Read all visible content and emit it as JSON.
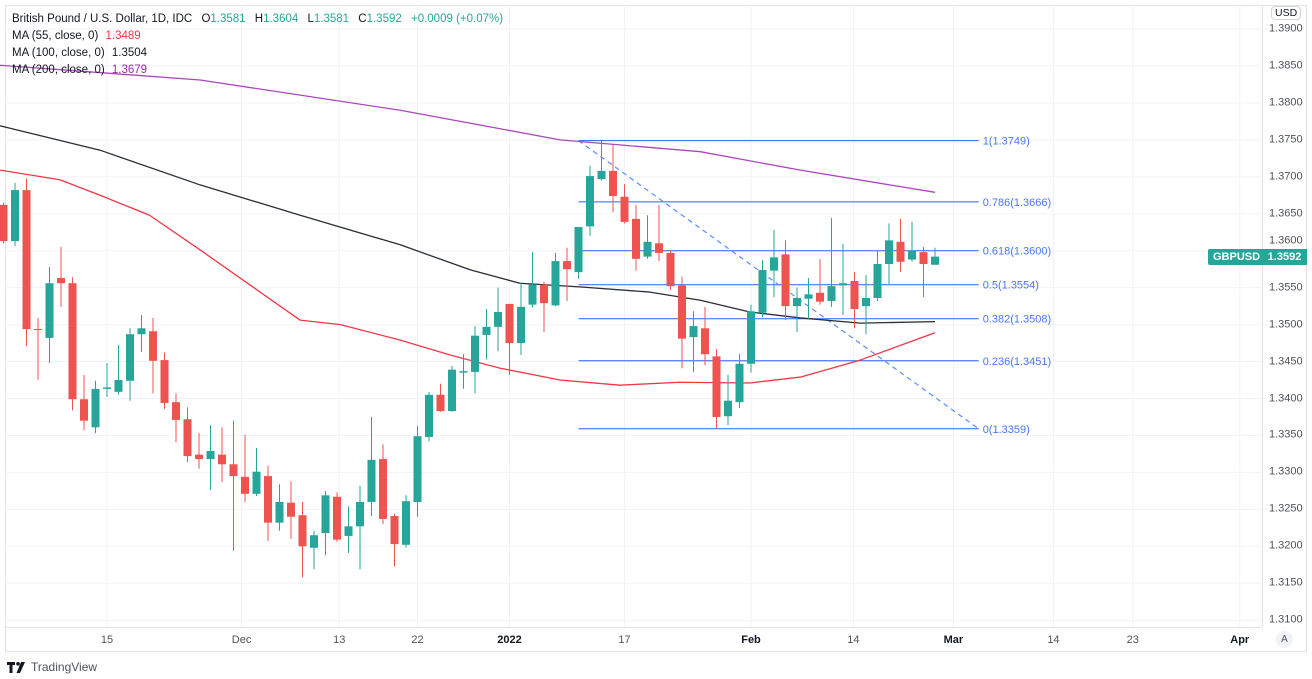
{
  "legend": {
    "title": "British Pound / U.S. Dollar, 1D, IDC",
    "o_label": "O",
    "o": "1.3581",
    "h_label": "H",
    "h": "1.3604",
    "l_label": "L",
    "l": "1.3581",
    "c_label": "C",
    "c": "1.3592",
    "change": "+0.0009 (+0.07%)",
    "ma55_label": "MA (55, close, 0)",
    "ma55_value": "1.3489",
    "ma100_label": "MA (100, close, 0)",
    "ma100_value": "1.3504",
    "ma200_label": "MA (200, close, 0)",
    "ma200_value": "1.3679"
  },
  "currency_button": "USD",
  "auto_scale_button": "A",
  "symbol_tag": "GBPUSD",
  "last_price_tag": "1.3592",
  "footer": {
    "brand": "TradingView"
  },
  "colors": {
    "up": "#26a69a",
    "down": "#ef5350",
    "ma55": "#f23645",
    "ma100": "#2a2e39",
    "ma200": "#ab47bc",
    "fib": "#2962ff",
    "grid": "#f0f3fa"
  },
  "chart_data": {
    "type": "candlestick",
    "title": "British Pound / U.S. Dollar, 1D, IDC",
    "ylim": [
      1.31,
      1.39
    ],
    "xlim": [
      -0.5,
      114
    ],
    "y_ticks": [
      "1.3100",
      "1.3150",
      "1.3200",
      "1.3250",
      "1.3300",
      "1.3350",
      "1.3400",
      "1.3450",
      "1.3500",
      "1.3550",
      "1.3600",
      "1.3650",
      "1.3700",
      "1.3750",
      "1.3800",
      "1.3850",
      "1.3900"
    ],
    "x_ticks": [
      {
        "label": "15",
        "bar": 9
      },
      {
        "label": "Dec",
        "bar": 20.7
      },
      {
        "label": "13",
        "bar": 29.2
      },
      {
        "label": "22",
        "bar": 36
      },
      {
        "label": "2022",
        "bar": 44,
        "bold": true
      },
      {
        "label": "17",
        "bar": 54
      },
      {
        "label": "Feb",
        "bar": 65,
        "bold": true
      },
      {
        "label": "14",
        "bar": 73.9
      },
      {
        "label": "Mar",
        "bar": 82.6,
        "bold": true
      },
      {
        "label": "14",
        "bar": 91.3
      },
      {
        "label": "23",
        "bar": 98.2
      },
      {
        "label": "Apr",
        "bar": 107.5,
        "bold": true
      }
    ],
    "candles_ohlc": [
      [
        1.3662,
        1.3665,
        1.361,
        1.3613
      ],
      [
        1.3613,
        1.3692,
        1.3606,
        1.3682
      ],
      [
        1.3682,
        1.3698,
        1.3471,
        1.3494
      ],
      [
        1.3494,
        1.3509,
        1.3425,
        1.3493
      ],
      [
        1.3482,
        1.3578,
        1.3448,
        1.3556
      ],
      [
        1.3563,
        1.3605,
        1.3524,
        1.3556
      ],
      [
        1.3556,
        1.3564,
        1.3384,
        1.3399
      ],
      [
        1.3399,
        1.3432,
        1.3357,
        1.337
      ],
      [
        1.3361,
        1.3424,
        1.3353,
        1.3413
      ],
      [
        1.3413,
        1.3448,
        1.3402,
        1.3415
      ],
      [
        1.3409,
        1.3472,
        1.3405,
        1.3425
      ],
      [
        1.3424,
        1.3495,
        1.3397,
        1.3487
      ],
      [
        1.3487,
        1.3513,
        1.3463,
        1.3495
      ],
      [
        1.3491,
        1.3509,
        1.3407,
        1.3451
      ],
      [
        1.3452,
        1.3462,
        1.3386,
        1.3394
      ],
      [
        1.3395,
        1.3407,
        1.3341,
        1.3371
      ],
      [
        1.3372,
        1.3388,
        1.3314,
        1.3322
      ],
      [
        1.3324,
        1.3353,
        1.3305,
        1.3318
      ],
      [
        1.3318,
        1.3364,
        1.3276,
        1.3329
      ],
      [
        1.3324,
        1.3361,
        1.3287,
        1.3311
      ],
      [
        1.3311,
        1.337,
        1.3194,
        1.3295
      ],
      [
        1.3294,
        1.3351,
        1.326,
        1.3271
      ],
      [
        1.3271,
        1.3333,
        1.3268,
        1.3301
      ],
      [
        1.3295,
        1.3309,
        1.3207,
        1.3232
      ],
      [
        1.3232,
        1.3284,
        1.3221,
        1.326
      ],
      [
        1.3259,
        1.3288,
        1.321,
        1.324
      ],
      [
        1.3242,
        1.326,
        1.3158,
        1.32
      ],
      [
        1.3198,
        1.3221,
        1.3169,
        1.3215
      ],
      [
        1.3218,
        1.3275,
        1.3188,
        1.3269
      ],
      [
        1.3267,
        1.3273,
        1.3206,
        1.3209
      ],
      [
        1.3214,
        1.3254,
        1.3191,
        1.3227
      ],
      [
        1.3227,
        1.3282,
        1.3169,
        1.326
      ],
      [
        1.326,
        1.3375,
        1.3241,
        1.3317
      ],
      [
        1.3318,
        1.3338,
        1.323,
        1.3237
      ],
      [
        1.3241,
        1.3244,
        1.3173,
        1.3203
      ],
      [
        1.3202,
        1.3269,
        1.3198,
        1.3261
      ],
      [
        1.326,
        1.3363,
        1.324,
        1.3349
      ],
      [
        1.3348,
        1.3409,
        1.3342,
        1.3405
      ],
      [
        1.3405,
        1.342,
        1.3382,
        1.3383
      ],
      [
        1.3383,
        1.3444,
        1.3382,
        1.3439
      ],
      [
        1.3435,
        1.346,
        1.3413,
        1.3437
      ],
      [
        1.3436,
        1.3498,
        1.3407,
        1.3485
      ],
      [
        1.3486,
        1.3521,
        1.3453,
        1.3497
      ],
      [
        1.3497,
        1.355,
        1.3464,
        1.3517
      ],
      [
        1.3528,
        1.3528,
        1.3432,
        1.3475
      ],
      [
        1.3475,
        1.3556,
        1.3459,
        1.3524
      ],
      [
        1.3527,
        1.3598,
        1.3523,
        1.3554
      ],
      [
        1.3554,
        1.3558,
        1.349,
        1.3529
      ],
      [
        1.3526,
        1.3597,
        1.3525,
        1.3586
      ],
      [
        1.3586,
        1.3604,
        1.3532,
        1.3575
      ],
      [
        1.3571,
        1.3632,
        1.3562,
        1.3632
      ],
      [
        1.3633,
        1.3715,
        1.362,
        1.3701
      ],
      [
        1.3697,
        1.3749,
        1.3695,
        1.3708
      ],
      [
        1.3708,
        1.3743,
        1.3652,
        1.3674
      ],
      [
        1.3673,
        1.369,
        1.3637,
        1.3639
      ],
      [
        1.3643,
        1.3662,
        1.3573,
        1.3589
      ],
      [
        1.3592,
        1.3648,
        1.3589,
        1.3612
      ],
      [
        1.361,
        1.3662,
        1.3586,
        1.3597
      ],
      [
        1.3597,
        1.3601,
        1.3547,
        1.3552
      ],
      [
        1.3553,
        1.3565,
        1.3441,
        1.3481
      ],
      [
        1.3483,
        1.3518,
        1.3436,
        1.3498
      ],
      [
        1.3495,
        1.3524,
        1.3445,
        1.346
      ],
      [
        1.3457,
        1.3467,
        1.3359,
        1.3375
      ],
      [
        1.3376,
        1.3432,
        1.3364,
        1.3397
      ],
      [
        1.3395,
        1.346,
        1.3387,
        1.3447
      ],
      [
        1.3447,
        1.3527,
        1.3435,
        1.3518
      ],
      [
        1.3516,
        1.3587,
        1.351,
        1.3574
      ],
      [
        1.3573,
        1.3628,
        1.3537,
        1.3591
      ],
      [
        1.3595,
        1.3614,
        1.3506,
        1.3525
      ],
      [
        1.3525,
        1.355,
        1.349,
        1.3536
      ],
      [
        1.3535,
        1.3563,
        1.3508,
        1.3541
      ],
      [
        1.3543,
        1.3589,
        1.3527,
        1.3531
      ],
      [
        1.3532,
        1.3644,
        1.3524,
        1.3552
      ],
      [
        1.3553,
        1.3609,
        1.3513,
        1.3556
      ],
      [
        1.3559,
        1.3571,
        1.3495,
        1.3521
      ],
      [
        1.3525,
        1.3567,
        1.3487,
        1.3536
      ],
      [
        1.3536,
        1.36,
        1.3532,
        1.3582
      ],
      [
        1.3582,
        1.3637,
        1.3555,
        1.3614
      ],
      [
        1.3612,
        1.3643,
        1.3571,
        1.3585
      ],
      [
        1.3588,
        1.3639,
        1.3585,
        1.36
      ],
      [
        1.3598,
        1.3605,
        1.3537,
        1.3582
      ],
      [
        1.3581,
        1.3604,
        1.3581,
        1.3592
      ]
    ],
    "series": [
      {
        "name": "MA (55, close, 0)",
        "key": "ma55",
        "points": [
          [
            -0.3,
            1.3709
          ],
          [
            4.9,
            1.3696
          ],
          [
            8.4,
            1.3675
          ],
          [
            12.7,
            1.3648
          ],
          [
            17.1,
            1.3601
          ],
          [
            21.4,
            1.3554
          ],
          [
            25.8,
            1.3506
          ],
          [
            29.3,
            1.35
          ],
          [
            34.5,
            1.3479
          ],
          [
            38.8,
            1.3459
          ],
          [
            43.2,
            1.3441
          ],
          [
            48.4,
            1.3425
          ],
          [
            53.6,
            1.3418
          ],
          [
            58.8,
            1.3422
          ],
          [
            64.9,
            1.3421
          ],
          [
            69.3,
            1.3429
          ],
          [
            74.5,
            1.3452
          ],
          [
            81,
            1.3489
          ]
        ]
      },
      {
        "name": "MA (100, close, 0)",
        "key": "ma100",
        "points": [
          [
            -0.3,
            1.3769
          ],
          [
            8.4,
            1.3736
          ],
          [
            17.1,
            1.3689
          ],
          [
            25.8,
            1.3648
          ],
          [
            34.5,
            1.3608
          ],
          [
            40.6,
            1.3574
          ],
          [
            44.9,
            1.3556
          ],
          [
            50.1,
            1.3551
          ],
          [
            56.2,
            1.3544
          ],
          [
            60.6,
            1.3533
          ],
          [
            64.9,
            1.3517
          ],
          [
            69.3,
            1.3509
          ],
          [
            74.5,
            1.3502
          ],
          [
            81,
            1.3504
          ]
        ]
      },
      {
        "name": "MA (200, close, 0)",
        "key": "ma200",
        "points": [
          [
            -0.3,
            1.3851
          ],
          [
            17.1,
            1.3831
          ],
          [
            34.5,
            1.379
          ],
          [
            48.4,
            1.375
          ],
          [
            60.6,
            1.3734
          ],
          [
            69.3,
            1.3709
          ],
          [
            81,
            1.3679
          ]
        ]
      }
    ],
    "fibonacci": {
      "start_bar": 50,
      "end_bar": 84.8,
      "levels": [
        {
          "label": "1(1.3749)",
          "price": 1.3749
        },
        {
          "label": "0.786(1.3666)",
          "price": 1.3666
        },
        {
          "label": "0.618(1.3600)",
          "price": 1.36
        },
        {
          "label": "0.5(1.3554)",
          "price": 1.3554
        },
        {
          "label": "0.382(1.3508)",
          "price": 1.3508
        },
        {
          "label": "0.236(1.3451)",
          "price": 1.3451
        },
        {
          "label": "0(1.3359)",
          "price": 1.3359
        }
      ],
      "trendline": [
        [
          50,
          1.3749
        ],
        [
          84.8,
          1.3359
        ]
      ]
    }
  }
}
